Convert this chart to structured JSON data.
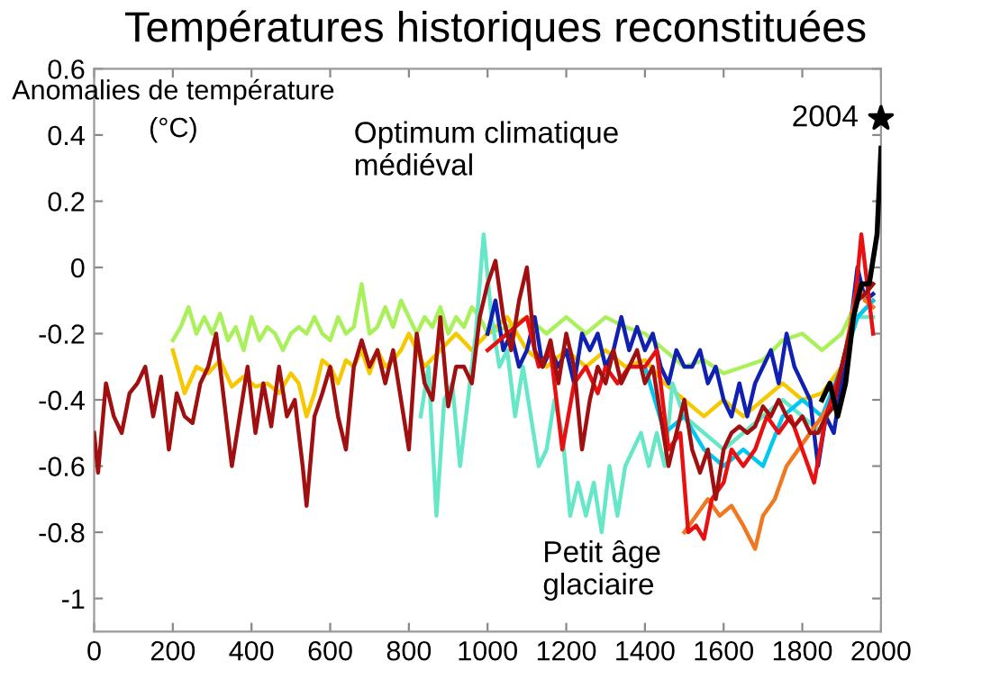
{
  "chart_data": {
    "type": "line",
    "title": "Températures historiques reconstituées",
    "ylabel": "Anomalies de température\n(°C)",
    "annotations": [
      "Optimum climatique\nmédiéval",
      "Petit âge\nglaciaire",
      {
        "text": "2004",
        "x": 2000,
        "y": 0.45
      }
    ],
    "xlim": [
      0,
      2000
    ],
    "xticks": [
      0,
      200,
      400,
      600,
      800,
      1000,
      1200,
      1400,
      1600,
      1800,
      2000
    ],
    "ylim": [
      -1.1,
      0.6
    ],
    "yticks": [
      0.6,
      0.4,
      0.2,
      0,
      -0.2,
      -0.4,
      -0.6,
      -0.8,
      -1
    ],
    "grid": false,
    "line_style": "solid",
    "series": [
      {
        "color": "#aaf05a",
        "x": [
          200,
          220,
          240,
          260,
          280,
          300,
          320,
          340,
          360,
          380,
          400,
          420,
          440,
          460,
          480,
          500,
          520,
          540,
          560,
          580,
          600,
          620,
          640,
          660,
          680,
          700,
          720,
          740,
          760,
          780,
          800,
          820,
          840,
          860,
          880,
          900,
          920,
          940,
          960,
          980,
          1000,
          1050,
          1100,
          1150,
          1200,
          1250,
          1300,
          1350,
          1400,
          1450,
          1500,
          1550,
          1600,
          1650,
          1700,
          1750,
          1800,
          1850,
          1900,
          1940,
          1980
        ],
        "values": [
          -0.22,
          -0.18,
          -0.12,
          -0.2,
          -0.15,
          -0.2,
          -0.14,
          -0.22,
          -0.18,
          -0.25,
          -0.15,
          -0.22,
          -0.18,
          -0.2,
          -0.25,
          -0.2,
          -0.18,
          -0.2,
          -0.15,
          -0.2,
          -0.22,
          -0.15,
          -0.2,
          -0.18,
          -0.05,
          -0.2,
          -0.18,
          -0.12,
          -0.18,
          -0.1,
          -0.15,
          -0.2,
          -0.15,
          -0.18,
          -0.12,
          -0.2,
          -0.15,
          -0.18,
          -0.12,
          -0.15,
          -0.2,
          -0.18,
          -0.15,
          -0.2,
          -0.15,
          -0.2,
          -0.15,
          -0.18,
          -0.2,
          -0.25,
          -0.3,
          -0.28,
          -0.32,
          -0.3,
          -0.28,
          -0.22,
          -0.2,
          -0.25,
          -0.2,
          -0.1,
          -0.05
        ]
      },
      {
        "color": "#f5c800",
        "x": [
          200,
          230,
          260,
          290,
          320,
          350,
          380,
          410,
          440,
          470,
          500,
          520,
          540,
          560,
          580,
          600,
          620,
          640,
          660,
          680,
          700,
          720,
          740,
          760,
          780,
          800,
          840,
          880,
          920,
          960,
          1000,
          1050,
          1100,
          1150,
          1200,
          1250,
          1300,
          1350,
          1400,
          1450,
          1500,
          1550,
          1600,
          1650,
          1700,
          1750,
          1800,
          1850,
          1900,
          1940,
          1980
        ],
        "values": [
          -0.25,
          -0.38,
          -0.3,
          -0.32,
          -0.28,
          -0.36,
          -0.33,
          -0.36,
          -0.35,
          -0.38,
          -0.32,
          -0.35,
          -0.45,
          -0.38,
          -0.28,
          -0.3,
          -0.35,
          -0.28,
          -0.3,
          -0.25,
          -0.32,
          -0.25,
          -0.3,
          -0.28,
          -0.25,
          -0.2,
          -0.3,
          -0.25,
          -0.2,
          -0.25,
          -0.2,
          -0.15,
          -0.25,
          -0.3,
          -0.25,
          -0.3,
          -0.25,
          -0.3,
          -0.28,
          -0.35,
          -0.4,
          -0.45,
          -0.4,
          -0.45,
          -0.4,
          -0.35,
          -0.4,
          -0.38,
          -0.3,
          -0.15,
          -0.1
        ]
      },
      {
        "color": "#66e8c8",
        "x": [
          830,
          850,
          870,
          890,
          910,
          930,
          950,
          970,
          990,
          1010,
          1030,
          1050,
          1070,
          1090,
          1110,
          1130,
          1150,
          1170,
          1190,
          1210,
          1230,
          1250,
          1270,
          1290,
          1310,
          1330,
          1350,
          1370,
          1390,
          1410,
          1430,
          1450,
          1470,
          1500,
          1550,
          1600,
          1650,
          1700,
          1750,
          1800,
          1850,
          1900,
          1940,
          1980
        ],
        "values": [
          -0.45,
          -0.3,
          -0.75,
          -0.4,
          -0.35,
          -0.6,
          -0.4,
          -0.2,
          0.1,
          -0.15,
          -0.3,
          -0.25,
          -0.45,
          -0.3,
          -0.45,
          -0.6,
          -0.55,
          -0.4,
          -0.5,
          -0.75,
          -0.65,
          -0.75,
          -0.65,
          -0.8,
          -0.6,
          -0.75,
          -0.6,
          -0.55,
          -0.5,
          -0.6,
          -0.5,
          -0.6,
          -0.35,
          -0.45,
          -0.5,
          -0.55,
          -0.5,
          -0.45,
          -0.4,
          -0.45,
          -0.5,
          -0.3,
          -0.15,
          -0.15
        ]
      },
      {
        "color": "#00c8f0",
        "x": [
          1400,
          1450,
          1500,
          1550,
          1600,
          1650,
          1700,
          1750,
          1800,
          1850,
          1900,
          1940,
          1980
        ],
        "values": [
          -0.3,
          -0.5,
          -0.45,
          -0.55,
          -0.6,
          -0.55,
          -0.6,
          -0.45,
          -0.4,
          -0.45,
          -0.3,
          -0.15,
          -0.1
        ]
      },
      {
        "color": "#1020b0",
        "x": [
          1000,
          1020,
          1040,
          1060,
          1080,
          1100,
          1120,
          1140,
          1160,
          1180,
          1200,
          1220,
          1240,
          1260,
          1280,
          1300,
          1320,
          1340,
          1360,
          1380,
          1400,
          1420,
          1440,
          1460,
          1480,
          1500,
          1520,
          1540,
          1560,
          1580,
          1600,
          1620,
          1640,
          1660,
          1680,
          1700,
          1720,
          1740,
          1760,
          1780,
          1800,
          1820,
          1840,
          1860,
          1880,
          1900,
          1920,
          1940,
          1960,
          1980
        ],
        "values": [
          -0.2,
          -0.1,
          -0.25,
          -0.2,
          -0.3,
          -0.25,
          -0.15,
          -0.3,
          -0.25,
          -0.3,
          -0.25,
          -0.35,
          -0.2,
          -0.25,
          -0.2,
          -0.3,
          -0.25,
          -0.15,
          -0.25,
          -0.18,
          -0.25,
          -0.2,
          -0.3,
          -0.35,
          -0.25,
          -0.3,
          -0.3,
          -0.25,
          -0.35,
          -0.3,
          -0.4,
          -0.45,
          -0.35,
          -0.45,
          -0.35,
          -0.3,
          -0.25,
          -0.35,
          -0.2,
          -0.3,
          -0.35,
          -0.4,
          -0.6,
          -0.45,
          -0.5,
          -0.35,
          -0.2,
          0.0,
          -0.1,
          -0.08
        ]
      },
      {
        "color": "#f07820",
        "x": [
          1500,
          1530,
          1560,
          1590,
          1620,
          1650,
          1680,
          1700,
          1730,
          1760,
          1790,
          1820,
          1850,
          1880,
          1910,
          1940,
          1960,
          1980
        ],
        "values": [
          -0.8,
          -0.75,
          -0.7,
          -0.75,
          -0.72,
          -0.78,
          -0.85,
          -0.75,
          -0.7,
          -0.6,
          -0.55,
          -0.5,
          -0.45,
          -0.4,
          -0.25,
          -0.05,
          -0.1,
          -0.12
        ]
      },
      {
        "color": "#e81010",
        "x": [
          1000,
          1050,
          1100,
          1130,
          1160,
          1190,
          1220,
          1250,
          1280,
          1300,
          1330,
          1360,
          1400,
          1430,
          1460,
          1490,
          1510,
          1530,
          1550,
          1570,
          1600,
          1620,
          1650,
          1680,
          1710,
          1740,
          1770,
          1800,
          1830,
          1860,
          1900,
          1930,
          1950,
          1980
        ],
        "values": [
          -0.25,
          -0.2,
          -0.15,
          -0.3,
          -0.25,
          -0.55,
          -0.35,
          -0.3,
          -0.38,
          -0.3,
          -0.35,
          -0.3,
          -0.3,
          -0.25,
          -0.55,
          -0.5,
          -0.8,
          -0.78,
          -0.82,
          -0.7,
          -0.65,
          -0.55,
          -0.6,
          -0.55,
          -0.45,
          -0.5,
          -0.45,
          -0.55,
          -0.65,
          -0.45,
          -0.3,
          -0.15,
          0.1,
          -0.2
        ]
      },
      {
        "color": "#a01010",
        "x": [
          0,
          10,
          30,
          50,
          70,
          90,
          110,
          130,
          150,
          170,
          190,
          210,
          230,
          250,
          270,
          290,
          310,
          330,
          350,
          370,
          390,
          410,
          430,
          450,
          470,
          490,
          510,
          530,
          540,
          560,
          580,
          600,
          620,
          640,
          660,
          680,
          700,
          720,
          740,
          760,
          780,
          800,
          820,
          840,
          860,
          880,
          900,
          920,
          940,
          960,
          980,
          1000,
          1020,
          1040,
          1060,
          1080,
          1100,
          1120,
          1140,
          1160,
          1180,
          1200,
          1220,
          1240,
          1260,
          1280,
          1300,
          1320,
          1340,
          1360,
          1380,
          1400,
          1420,
          1440,
          1460,
          1480,
          1500,
          1520,
          1540,
          1560,
          1580,
          1600,
          1620,
          1640,
          1660,
          1680,
          1700,
          1720,
          1740,
          1760,
          1780,
          1800,
          1820,
          1840,
          1860,
          1880,
          1900,
          1920,
          1940,
          1960,
          1980
        ],
        "values": [
          -0.5,
          -0.62,
          -0.35,
          -0.45,
          -0.5,
          -0.38,
          -0.35,
          -0.3,
          -0.45,
          -0.33,
          -0.55,
          -0.38,
          -0.45,
          -0.47,
          -0.35,
          -0.3,
          -0.2,
          -0.4,
          -0.6,
          -0.45,
          -0.3,
          -0.5,
          -0.35,
          -0.48,
          -0.3,
          -0.45,
          -0.4,
          -0.6,
          -0.72,
          -0.45,
          -0.38,
          -0.3,
          -0.45,
          -0.55,
          -0.3,
          -0.22,
          -0.3,
          -0.25,
          -0.35,
          -0.25,
          -0.4,
          -0.55,
          -0.2,
          -0.35,
          -0.4,
          -0.15,
          -0.42,
          -0.3,
          -0.3,
          -0.35,
          -0.15,
          -0.05,
          0.02,
          -0.15,
          -0.25,
          -0.1,
          0.0,
          -0.25,
          -0.3,
          -0.22,
          -0.35,
          -0.2,
          -0.3,
          -0.55,
          -0.4,
          -0.3,
          -0.35,
          -0.25,
          -0.35,
          -0.3,
          -0.25,
          -0.35,
          -0.3,
          -0.45,
          -0.6,
          -0.5,
          -0.4,
          -0.55,
          -0.62,
          -0.55,
          -0.7,
          -0.55,
          -0.5,
          -0.48,
          -0.5,
          -0.48,
          -0.42,
          -0.45,
          -0.4,
          -0.45,
          -0.48,
          -0.45,
          -0.5,
          -0.5,
          -0.45,
          -0.42,
          -0.3,
          -0.2,
          -0.1,
          -0.08,
          -0.05
        ]
      },
      {
        "color": "#000000",
        "x": [
          1850,
          1870,
          1890,
          1910,
          1930,
          1950,
          1970,
          1990,
          2000
        ],
        "values": [
          -0.4,
          -0.35,
          -0.45,
          -0.35,
          -0.15,
          -0.05,
          -0.05,
          0.1,
          0.36
        ]
      },
      {
        "type": "scatter",
        "marker": "star",
        "color": "#000000",
        "x": [
          2000
        ],
        "values": [
          0.45
        ]
      }
    ]
  }
}
